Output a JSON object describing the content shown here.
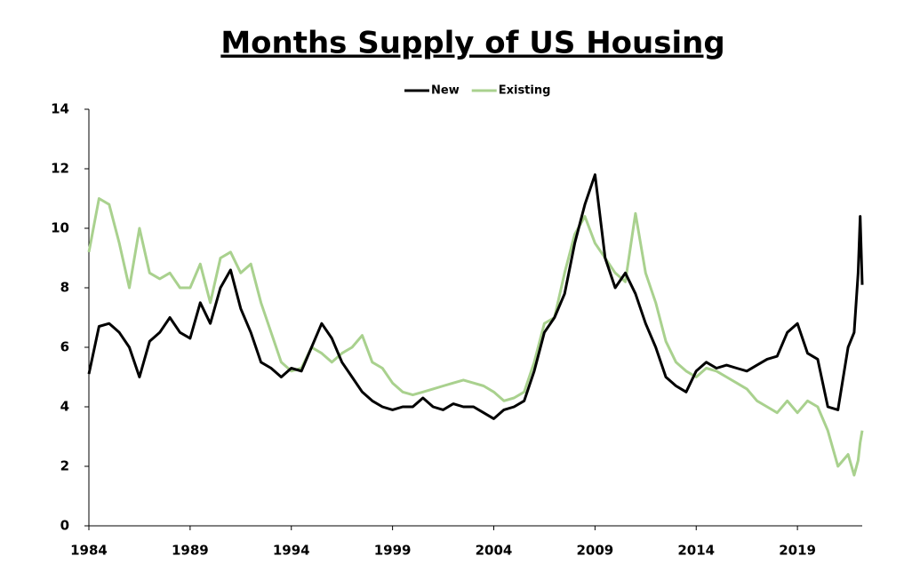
{
  "chart_data": {
    "type": "line",
    "title": "Months Supply of US Housing",
    "x": [
      1984,
      1984.5,
      1985,
      1985.5,
      1986,
      1986.5,
      1987,
      1987.5,
      1988,
      1988.5,
      1989,
      1989.5,
      1990,
      1990.5,
      1991,
      1991.5,
      1992,
      1992.5,
      1993,
      1993.5,
      1994,
      1994.5,
      1995,
      1995.5,
      1996,
      1996.5,
      1997,
      1997.5,
      1998,
      1998.5,
      1999,
      1999.5,
      2000,
      2000.5,
      2001,
      2001.5,
      2002,
      2002.5,
      2003,
      2003.5,
      2004,
      2004.5,
      2005,
      2005.5,
      2006,
      2006.5,
      2007,
      2007.5,
      2008,
      2008.5,
      2009,
      2009.5,
      2010,
      2010.5,
      2011,
      2011.5,
      2012,
      2012.5,
      2013,
      2013.5,
      2014,
      2014.5,
      2015,
      2015.5,
      2016,
      2016.5,
      2017,
      2017.5,
      2018,
      2018.5,
      2019,
      2019.5,
      2020,
      2020.5,
      2021,
      2021.5,
      2021.8,
      2022,
      2022.1,
      2022.2
    ],
    "series": [
      {
        "name": "New",
        "color": "#000000",
        "values": [
          5.1,
          6.7,
          6.8,
          6.5,
          6.0,
          5.0,
          6.2,
          6.5,
          7.0,
          6.5,
          6.3,
          7.5,
          6.8,
          8.0,
          8.6,
          7.3,
          6.5,
          5.5,
          5.3,
          5.0,
          5.3,
          5.2,
          6.0,
          6.8,
          6.3,
          5.5,
          5.0,
          4.5,
          4.2,
          4.0,
          3.9,
          4.0,
          4.0,
          4.3,
          4.0,
          3.9,
          4.1,
          4.0,
          4.0,
          3.8,
          3.6,
          3.9,
          4.0,
          4.2,
          5.2,
          6.5,
          7.0,
          7.8,
          9.5,
          10.8,
          11.8,
          9.0,
          8.0,
          8.5,
          7.8,
          6.8,
          6.0,
          5.0,
          4.7,
          4.5,
          5.2,
          5.5,
          5.3,
          5.4,
          5.3,
          5.2,
          5.4,
          5.6,
          5.7,
          6.5,
          6.8,
          5.8,
          5.6,
          4.0,
          3.9,
          6.0,
          6.5,
          8.5,
          10.4,
          8.1
        ]
      },
      {
        "name": "Existing",
        "color": "#a9d18e",
        "values": [
          9.2,
          11.0,
          10.8,
          9.5,
          8.0,
          10.0,
          8.5,
          8.3,
          8.5,
          8.0,
          8.0,
          8.8,
          7.5,
          9.0,
          9.2,
          8.5,
          8.8,
          7.5,
          6.5,
          5.5,
          5.2,
          5.3,
          6.0,
          5.8,
          5.5,
          5.8,
          6.0,
          6.4,
          5.5,
          5.3,
          4.8,
          4.5,
          4.4,
          4.5,
          4.6,
          4.7,
          4.8,
          4.9,
          4.8,
          4.7,
          4.5,
          4.2,
          4.3,
          4.5,
          5.5,
          6.8,
          7.0,
          8.5,
          9.8,
          10.4,
          9.5,
          9.0,
          8.5,
          8.2,
          10.5,
          8.5,
          7.5,
          6.2,
          5.5,
          5.2,
          5.0,
          5.3,
          5.2,
          5.0,
          4.8,
          4.6,
          4.2,
          4.0,
          3.8,
          4.2,
          3.8,
          4.2,
          4.0,
          3.2,
          2.0,
          2.4,
          1.7,
          2.2,
          2.8,
          3.2
        ]
      }
    ],
    "xlim": [
      1984,
      2022.2
    ],
    "xticks": [
      1984,
      1989,
      1994,
      1999,
      2004,
      2009,
      2014,
      2019
    ],
    "ylim": [
      0,
      14
    ],
    "yticks": [
      0,
      2,
      4,
      6,
      8,
      10,
      12,
      14
    ],
    "grid": false,
    "legend": "top"
  }
}
